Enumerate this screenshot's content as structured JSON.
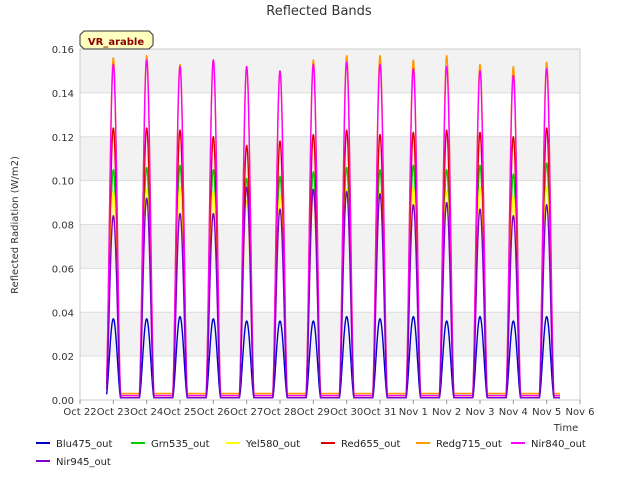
{
  "chart_data": {
    "type": "line",
    "title": "Reflected Bands",
    "xlabel": "Time",
    "ylabel": "Reflected Radiation (W/m2)",
    "site_label": "VR_arable",
    "xlim": [
      0,
      15
    ],
    "ylim": [
      0,
      0.16
    ],
    "x_tick_labels": [
      "Oct 22",
      "Oct 23",
      "Oct 24",
      "Oct 25",
      "Oct 26",
      "Oct 27",
      "Oct 28",
      "Oct 29",
      "Oct 30",
      "Oct 31",
      "Nov 1",
      "Nov 2",
      "Nov 3",
      "Nov 4",
      "Nov 5",
      "Nov 6"
    ],
    "y_ticks": [
      0.0,
      0.02,
      0.04,
      0.06,
      0.08,
      0.1,
      0.12,
      0.14,
      0.16
    ],
    "y_tick_labels": [
      "0.00",
      "0.02",
      "0.04",
      "0.06",
      "0.08",
      "0.10",
      "0.12",
      "0.14",
      "0.16"
    ],
    "day_x": [
      0.9,
      1.8,
      2.8,
      3.8,
      4.8,
      5.8,
      6.8,
      7.8,
      8.8,
      9.8,
      10.8,
      11.8,
      12.8,
      13.8
    ],
    "day_centers": [
      1.0,
      2.0,
      3.0,
      4.0,
      5.0,
      6.0,
      7.0,
      8.0,
      9.0,
      10.0,
      11.0,
      12.0,
      13.0,
      14.0
    ],
    "series": [
      {
        "name": "Blu475_out",
        "color": "#0000cc",
        "night": 0.001,
        "peaks": [
          0.037,
          0.037,
          0.038,
          0.037,
          0.036,
          0.036,
          0.036,
          0.038,
          0.037,
          0.038,
          0.036,
          0.038,
          0.036,
          0.038
        ]
      },
      {
        "name": "Grn535_out",
        "color": "#00cc00",
        "night": 0.002,
        "peaks": [
          0.105,
          0.106,
          0.107,
          0.105,
          0.101,
          0.102,
          0.104,
          0.106,
          0.105,
          0.107,
          0.105,
          0.107,
          0.103,
          0.108
        ]
      },
      {
        "name": "Yel580_out",
        "color": "#ffff00",
        "night": 0.002,
        "peaks": [
          0.095,
          0.096,
          0.097,
          0.095,
          0.091,
          0.093,
          0.094,
          0.096,
          0.095,
          0.097,
          0.095,
          0.097,
          0.093,
          0.097
        ]
      },
      {
        "name": "Red655_out",
        "color": "#dd0000",
        "night": 0.002,
        "peaks": [
          0.124,
          0.124,
          0.123,
          0.12,
          0.116,
          0.118,
          0.121,
          0.123,
          0.121,
          0.122,
          0.123,
          0.122,
          0.12,
          0.124
        ]
      },
      {
        "name": "Redg715_out",
        "color": "#ff9900",
        "night": 0.003,
        "peaks": [
          0.156,
          0.157,
          0.153,
          0.155,
          0.152,
          0.15,
          0.155,
          0.157,
          0.157,
          0.155,
          0.157,
          0.153,
          0.152,
          0.154
        ]
      },
      {
        "name": "Nir840_out",
        "color": "#ff00ff",
        "night": 0.002,
        "peaks": [
          0.153,
          0.155,
          0.152,
          0.155,
          0.152,
          0.15,
          0.153,
          0.154,
          0.153,
          0.151,
          0.152,
          0.15,
          0.148,
          0.151
        ]
      },
      {
        "name": "Nir945_out",
        "color": "#8000cc",
        "night": 0.001,
        "peaks": [
          0.084,
          0.092,
          0.085,
          0.085,
          0.097,
          0.087,
          0.096,
          0.095,
          0.094,
          0.089,
          0.09,
          0.087,
          0.084,
          0.089
        ]
      }
    ],
    "legend": {
      "position": "bottom"
    },
    "grid": true
  }
}
